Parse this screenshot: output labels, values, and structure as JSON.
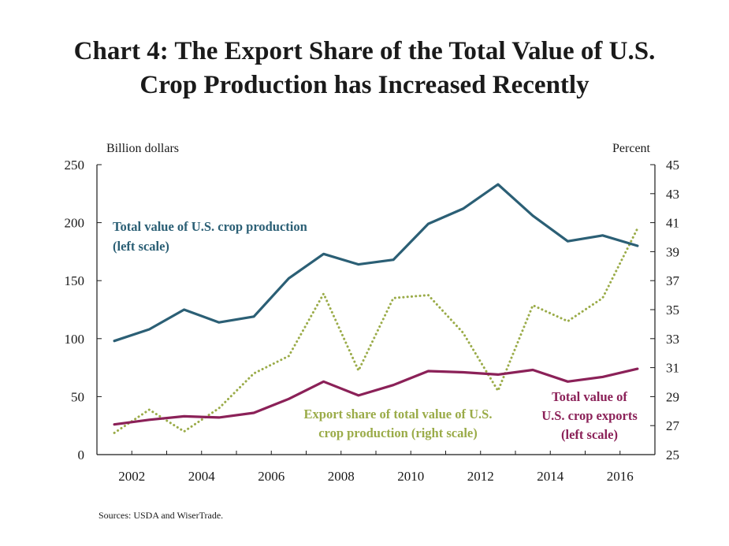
{
  "chart_data": {
    "type": "line",
    "title_line1": "Chart 4: The Export Share of the Total Value of U.S.",
    "title_line2": "Crop Production has Increased Recently",
    "left_axis_label": "Billion dollars",
    "right_axis_label": "Percent",
    "x": [
      2001.5,
      2002.5,
      2003.5,
      2004.5,
      2005.5,
      2006.5,
      2007.5,
      2008.5,
      2009.5,
      2010.5,
      2011.5,
      2012.5,
      2013.5,
      2014.5,
      2015.5,
      2016.5
    ],
    "xlim": [
      2001,
      2017
    ],
    "x_ticks": [
      "2002",
      "2004",
      "2006",
      "2008",
      "2010",
      "2012",
      "2014",
      "2016"
    ],
    "ylim_left": [
      0,
      250
    ],
    "left_ticks": [
      "0",
      "50",
      "100",
      "150",
      "200",
      "250"
    ],
    "ylim_right": [
      25,
      45
    ],
    "right_ticks": [
      "25",
      "27",
      "29",
      "31",
      "33",
      "35",
      "37",
      "39",
      "41",
      "43",
      "45"
    ],
    "grid": false,
    "series": [
      {
        "name": "Total value of U.S. crop production (left scale)",
        "axis": "left",
        "color": "#2b5f75",
        "style": "solid",
        "values": [
          98,
          108,
          125,
          114,
          119,
          152,
          173,
          164,
          168,
          199,
          212,
          233,
          206,
          184,
          189,
          180
        ]
      },
      {
        "name": "Total value of U.S. crop exports (left scale)",
        "axis": "left",
        "color": "#8b2158",
        "style": "solid",
        "values": [
          26,
          30,
          33,
          32,
          36,
          48,
          63,
          51,
          60,
          72,
          71,
          69,
          73,
          63,
          67,
          74
        ]
      },
      {
        "name": "Export share of total value of U.S. crop production (right scale)",
        "axis": "right",
        "color": "#9aab48",
        "style": "dotted",
        "values": [
          26.5,
          28.1,
          26.6,
          28.2,
          30.6,
          31.8,
          36.1,
          30.8,
          35.8,
          36.0,
          33.4,
          29.4,
          35.3,
          34.2,
          35.8,
          40.6
        ]
      }
    ],
    "annotations": {
      "production_line1": "Total value of U.S. crop production",
      "production_line2": "(left scale)",
      "share_line1": "Export share of total value of U.S.",
      "share_line2": "crop production (right scale)",
      "exports_line1": "Total value of",
      "exports_line2": "U.S. crop exports",
      "exports_line3": "(left scale)"
    },
    "source": "Sources: USDA and WiserTrade."
  }
}
